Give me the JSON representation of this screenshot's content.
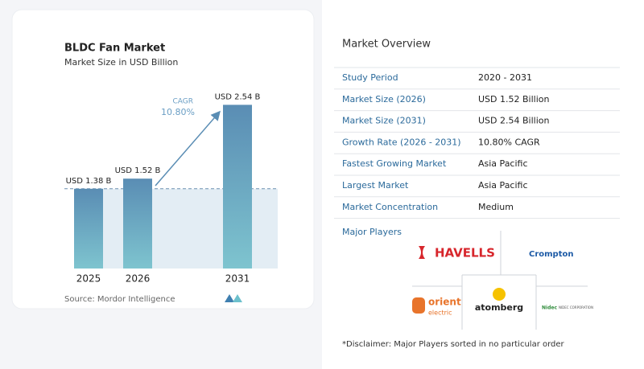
{
  "chart_data": {
    "type": "bar",
    "title": "BLDC Fan Market",
    "subtitle": "Market Size in USD Billion",
    "categories": [
      "2025",
      "2026",
      "2031"
    ],
    "values": [
      1.38,
      1.52,
      2.54
    ],
    "value_labels": [
      "USD 1.38 B",
      "USD 1.52 B",
      "USD 2.54 B"
    ],
    "annotation": {
      "label": "CAGR",
      "value": "10.80%"
    },
    "source": "Source: Mordor Intelligence"
  },
  "overview": {
    "title": "Market Overview",
    "rows": [
      [
        "Study Period",
        "2020 - 2031"
      ],
      [
        "Market Size (2026)",
        "USD 1.52 Billion"
      ],
      [
        "Market Size (2031)",
        "USD 2.54 Billion"
      ],
      [
        "Growth Rate (2026 - 2031)",
        "10.80% CAGR"
      ],
      [
        "Fastest Growing Market",
        "Asia Pacific"
      ],
      [
        "Largest Market",
        "Asia Pacific"
      ],
      [
        "Market Concentration",
        "Medium"
      ]
    ]
  },
  "players": {
    "title": "Major Players",
    "logos": [
      "HAVELLS",
      "Crompton",
      "orient",
      "electric",
      "atomberg",
      "Nidec",
      "NIDEC CORPORATION"
    ]
  },
  "disclaimer": "*Disclaimer: Major Players sorted in no particular order"
}
